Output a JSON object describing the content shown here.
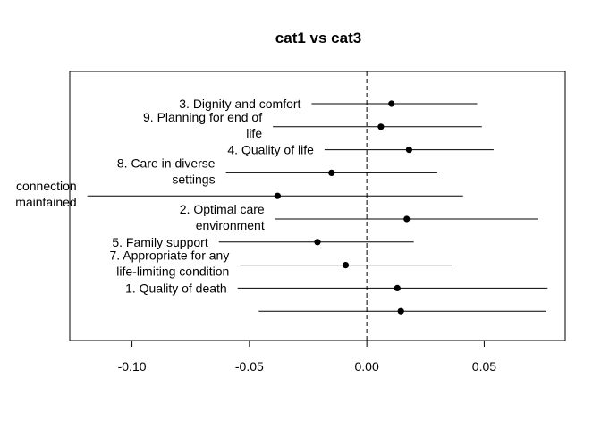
{
  "chart_data": {
    "type": "forest",
    "title": "cat1 vs cat3",
    "xlabel": "",
    "ylabel": "",
    "xlim": [
      -0.1265,
      0.0845
    ],
    "x_ticks": [
      {
        "value": -0.1,
        "label": "-0.10"
      },
      {
        "value": -0.05,
        "label": "-0.05"
      },
      {
        "value": 0.0,
        "label": "0.00"
      },
      {
        "value": 0.05,
        "label": "0.05"
      }
    ],
    "reference_line": 0,
    "grid": false,
    "rows": [
      {
        "label_lines": [
          "3. Dignity and comfort"
        ],
        "estimate": 0.0105,
        "lower": -0.0235,
        "upper": 0.047
      },
      {
        "label_lines": [
          "9. Planning for end of",
          "life"
        ],
        "estimate": 0.006,
        "lower": -0.04,
        "upper": 0.049
      },
      {
        "label_lines": [
          "4. Quality of life"
        ],
        "estimate": 0.018,
        "lower": -0.018,
        "upper": 0.054
      },
      {
        "label_lines": [
          "8. Care in diverse",
          "settings"
        ],
        "estimate": -0.015,
        "lower": -0.06,
        "upper": 0.03
      },
      {
        "label_lines": [
          "connection",
          "maintained"
        ],
        "estimate": -0.038,
        "lower": -0.119,
        "upper": 0.041
      },
      {
        "label_lines": [
          "2. Optimal care",
          "environment"
        ],
        "estimate": 0.017,
        "lower": -0.039,
        "upper": 0.073
      },
      {
        "label_lines": [
          "5. Family support"
        ],
        "estimate": -0.021,
        "lower": -0.063,
        "upper": 0.02
      },
      {
        "label_lines": [
          "7. Appropriate for any",
          "life-limiting condition"
        ],
        "estimate": -0.009,
        "lower": -0.054,
        "upper": 0.036
      },
      {
        "label_lines": [
          "1. Quality of death"
        ],
        "estimate": 0.013,
        "lower": -0.055,
        "upper": 0.077
      },
      {
        "label_lines": [],
        "estimate": 0.0145,
        "lower": -0.046,
        "upper": 0.0765
      }
    ]
  }
}
